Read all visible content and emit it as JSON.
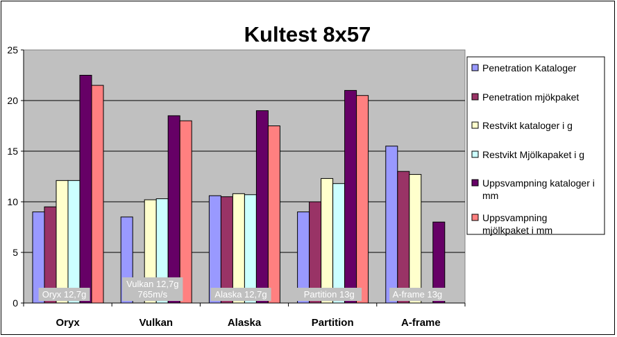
{
  "chart_data": {
    "type": "bar",
    "title": "Kultest 8x57",
    "categories": [
      "Oryx",
      "Vulkan",
      "Alaska",
      "Partition",
      "A-frame"
    ],
    "ylim": [
      0,
      25
    ],
    "yticks": [
      "0",
      "5",
      "10",
      "15",
      "20",
      "25"
    ],
    "grid": true,
    "legend_position": "right",
    "series": [
      {
        "name": "Penetration Kataloger",
        "color": "#9999ff",
        "values": [
          9.0,
          8.5,
          10.6,
          9.0,
          15.5
        ]
      },
      {
        "name": "Penetration mjökpaket",
        "color": "#993366",
        "values": [
          9.5,
          null,
          10.5,
          10.0,
          13.0
        ]
      },
      {
        "name": "Restvikt kataloger i g",
        "color": "#ffffcc",
        "values": [
          12.1,
          10.2,
          10.8,
          12.3,
          12.7
        ]
      },
      {
        "name": "Restvikt Mjölkapaket i g",
        "color": "#ccffff",
        "values": [
          12.1,
          10.3,
          10.7,
          11.8,
          null
        ]
      },
      {
        "name": "Uppsvampning kataloger i mm",
        "color": "#660066",
        "values": [
          22.5,
          18.5,
          19.0,
          21.0,
          8.0
        ]
      },
      {
        "name": "Uppsvampning mjölkpaket i mm",
        "color": "#ff8080",
        "values": [
          21.5,
          18.0,
          17.5,
          20.5,
          null
        ]
      }
    ],
    "annotations": [
      [
        "Oryx 12,7g"
      ],
      [
        "Vulkan 12,7g",
        "765m/s"
      ],
      [
        "Alaska 12,7g"
      ],
      [
        "Partition 13g"
      ],
      [
        "A-frame 13g"
      ]
    ],
    "colors": {
      "plot_background": "#c0c0c0",
      "annotation_background": "#c0c0c0"
    }
  }
}
